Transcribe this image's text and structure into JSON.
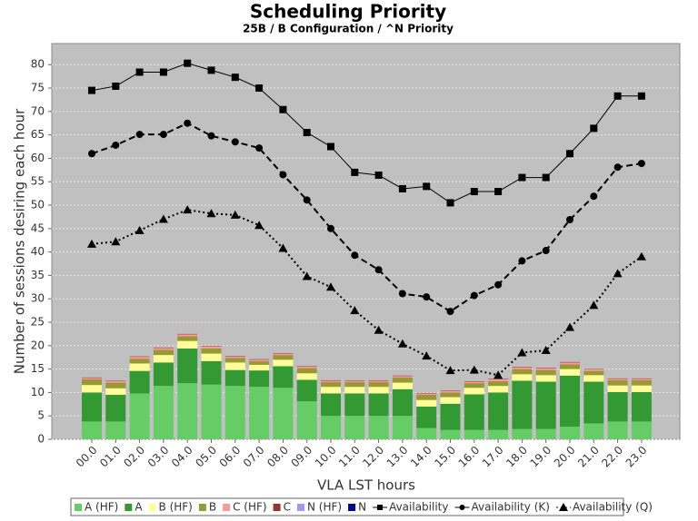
{
  "chart_data": {
    "type": "bar-line",
    "title": "Scheduling Priority",
    "subtitle": "25B / B Configuration / ^N Priority",
    "x_label": "VLA LST hours",
    "y_label": "Number of sessions desiring each hour",
    "categories": [
      "00.0",
      "01.0",
      "02.0",
      "03.0",
      "04.0",
      "05.0",
      "06.0",
      "07.0",
      "08.0",
      "09.0",
      "10.0",
      "11.0",
      "12.0",
      "13.0",
      "14.0",
      "15.0",
      "16.0",
      "17.0",
      "18.0",
      "19.0",
      "20.0",
      "21.0",
      "22.0",
      "23.0"
    ],
    "ylim": [
      0,
      84.5
    ],
    "yticks": [
      0,
      5,
      10,
      15,
      20,
      25,
      30,
      35,
      40,
      45,
      50,
      55,
      60,
      65,
      70,
      75,
      80
    ],
    "grid": true,
    "stacked": true,
    "legend": "bottom",
    "series": [
      {
        "name": "A (HF)",
        "kind": "bar",
        "color": "#66cc66",
        "values": [
          3.8,
          3.8,
          9.8,
          11.4,
          12.0,
          11.7,
          11.4,
          11.2,
          11.0,
          8.1,
          5.0,
          5.0,
          5.0,
          5.0,
          2.4,
          2.0,
          2.0,
          2.0,
          2.2,
          2.2,
          2.7,
          3.4,
          3.8,
          3.8
        ]
      },
      {
        "name": "A",
        "kind": "bar",
        "color": "#339933",
        "values": [
          6.2,
          5.7,
          4.8,
          5.0,
          7.4,
          5.0,
          3.4,
          3.5,
          4.6,
          4.6,
          4.8,
          4.8,
          4.8,
          5.7,
          4.6,
          5.6,
          7.6,
          8.0,
          10.3,
          10.1,
          10.9,
          8.9,
          6.3,
          6.3
        ]
      },
      {
        "name": "B (HF)",
        "kind": "bar",
        "color": "#ffff99",
        "values": [
          1.6,
          1.4,
          1.6,
          1.6,
          1.6,
          1.6,
          1.6,
          1.2,
          1.4,
          1.4,
          1.4,
          1.4,
          1.4,
          1.4,
          1.4,
          1.4,
          1.4,
          1.4,
          1.4,
          1.4,
          1.4,
          1.4,
          1.4,
          1.4
        ]
      },
      {
        "name": "B",
        "kind": "bar",
        "color": "#999933",
        "values": [
          1.2,
          1.2,
          1.0,
          1.1,
          1.0,
          1.1,
          1.0,
          0.8,
          1.0,
          1.1,
          1.0,
          1.0,
          1.0,
          1.1,
          1.1,
          1.0,
          1.0,
          1.0,
          1.1,
          1.1,
          1.0,
          0.9,
          1.1,
          1.1
        ]
      },
      {
        "name": "C (HF)",
        "kind": "bar",
        "color": "#ff9999",
        "values": [
          0.3,
          0.3,
          0.4,
          0.4,
          0.4,
          0.4,
          0.3,
          0.3,
          0.3,
          0.3,
          0.3,
          0.3,
          0.3,
          0.3,
          0.3,
          0.3,
          0.3,
          0.4,
          0.4,
          0.4,
          0.4,
          0.3,
          0.3,
          0.3
        ]
      },
      {
        "name": "C",
        "kind": "bar",
        "color": "#993333",
        "values": [
          0.1,
          0.1,
          0.1,
          0.1,
          0.1,
          0.1,
          0.1,
          0.1,
          0.1,
          0.1,
          0.1,
          0.1,
          0.1,
          0.1,
          0.1,
          0.1,
          0.1,
          0.1,
          0.1,
          0.1,
          0.1,
          0.1,
          0.1,
          0.1
        ]
      },
      {
        "name": "N (HF)",
        "kind": "bar",
        "color": "#9999ff",
        "values": [
          0,
          0,
          0,
          0,
          0,
          0,
          0,
          0,
          0,
          0,
          0,
          0,
          0,
          0,
          0,
          0,
          0,
          0,
          0,
          0,
          0,
          0,
          0,
          0
        ]
      },
      {
        "name": "N",
        "kind": "bar",
        "color": "#000099",
        "values": [
          0,
          0,
          0,
          0,
          0,
          0,
          0,
          0,
          0,
          0,
          0,
          0,
          0,
          0,
          0,
          0,
          0,
          0,
          0,
          0,
          0,
          0,
          0,
          0
        ]
      },
      {
        "name": "Availability",
        "kind": "line",
        "color": "#000000",
        "marker": "square",
        "dash": "solid",
        "values": [
          74.5,
          75.4,
          78.4,
          78.4,
          80.3,
          78.8,
          77.3,
          75.0,
          70.4,
          65.5,
          62.5,
          57.0,
          56.4,
          53.5,
          54.0,
          50.5,
          52.9,
          52.9,
          55.9,
          55.9,
          61.0,
          66.4,
          73.3,
          73.3
        ]
      },
      {
        "name": "Availability (K)",
        "kind": "line",
        "color": "#000000",
        "marker": "circle",
        "dash": "dashed",
        "values": [
          61.0,
          62.8,
          65.1,
          65.1,
          67.5,
          64.8,
          63.5,
          62.2,
          56.5,
          51.1,
          45.0,
          39.3,
          36.2,
          31.1,
          30.4,
          27.3,
          30.7,
          33.0,
          38.1,
          40.3,
          46.9,
          51.9,
          58.1,
          58.9
        ]
      },
      {
        "name": "Availability (Q)",
        "kind": "line",
        "color": "#000000",
        "marker": "triangle",
        "dash": "dotted",
        "values": [
          41.7,
          42.2,
          44.6,
          47.0,
          49.0,
          48.2,
          47.9,
          45.7,
          40.8,
          34.8,
          32.5,
          27.5,
          23.3,
          20.4,
          17.8,
          14.7,
          14.8,
          13.7,
          18.5,
          19.0,
          23.9,
          28.6,
          35.4,
          39.0
        ]
      }
    ]
  }
}
